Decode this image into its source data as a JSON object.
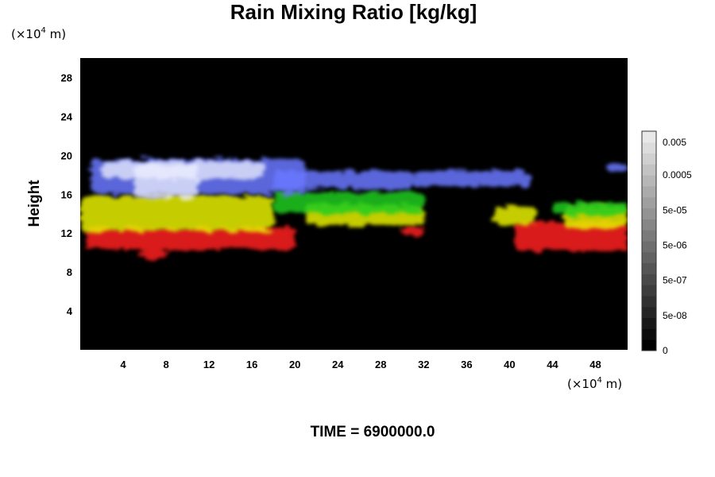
{
  "chart_data": {
    "type": "heatmap",
    "title": "Rain Mixing Ratio [kg/kg]",
    "xlabel": "",
    "ylabel": "Height",
    "x_unit_prefix": "(×10",
    "x_unit_exp": "4",
    "x_unit_suffix": " m)",
    "y_unit_prefix": "(×10",
    "y_unit_exp": "4",
    "y_unit_suffix": " m)",
    "xlim": [
      0,
      51
    ],
    "ylim": [
      0,
      30
    ],
    "x_ticks": [
      4,
      8,
      12,
      16,
      20,
      24,
      28,
      32,
      36,
      40,
      44,
      48
    ],
    "y_ticks": [
      4,
      8,
      12,
      16,
      20,
      24,
      28
    ],
    "background": "#000000",
    "colorbar": {
      "labels": [
        "0.005",
        "0.0005",
        "5e-05",
        "5e-06",
        "5e-07",
        "5e-08",
        "0"
      ],
      "positions": [
        0.95,
        0.8,
        0.64,
        0.48,
        0.32,
        0.16,
        0.0
      ]
    },
    "layers": [
      {
        "color": "#ff1e1e",
        "patches": [
          {
            "x": [
              0.5,
              20
            ],
            "y": [
              10.3,
              12.6
            ]
          },
          {
            "x": [
              5.5,
              8
            ],
            "y": [
              9.3,
              10.3
            ]
          },
          {
            "x": [
              30,
              32
            ],
            "y": [
              11.8,
              12.6
            ]
          },
          {
            "x": [
              40.5,
              51
            ],
            "y": [
              10.2,
              13.2
            ]
          }
        ]
      },
      {
        "color": "#e8f000",
        "patches": [
          {
            "x": [
              0,
              18
            ],
            "y": [
              12.2,
              15.8
            ]
          },
          {
            "x": [
              21,
              32
            ],
            "y": [
              12.8,
              15.0
            ]
          },
          {
            "x": [
              38.5,
              42.5
            ],
            "y": [
              12.8,
              14.8
            ]
          },
          {
            "x": [
              45,
              51
            ],
            "y": [
              12.5,
              14.8
            ]
          }
        ]
      },
      {
        "color": "#1ecc1e",
        "patches": [
          {
            "x": [
              18,
              32
            ],
            "y": [
              14.0,
              16.2
            ]
          },
          {
            "x": [
              44,
              51
            ],
            "y": [
              13.8,
              15.2
            ]
          }
        ]
      },
      {
        "color": "#6a78ff",
        "patches": [
          {
            "x": [
              1,
              21
            ],
            "y": [
              16.0,
              19.6
            ]
          },
          {
            "x": [
              18,
              31
            ],
            "y": [
              16.5,
              18.4
            ]
          },
          {
            "x": [
              31,
              42
            ],
            "y": [
              16.8,
              18.4
            ]
          },
          {
            "x": [
              49,
              51
            ],
            "y": [
              18.3,
              19.2
            ]
          }
        ]
      },
      {
        "color": "#eef0ff",
        "patches": [
          {
            "x": [
              5,
              11
            ],
            "y": [
              15.5,
              19.0
            ]
          },
          {
            "x": [
              2,
              17
            ],
            "y": [
              17.6,
              19.4
            ]
          }
        ]
      }
    ]
  },
  "footer": {
    "time_label": "TIME = 6900000.0"
  }
}
